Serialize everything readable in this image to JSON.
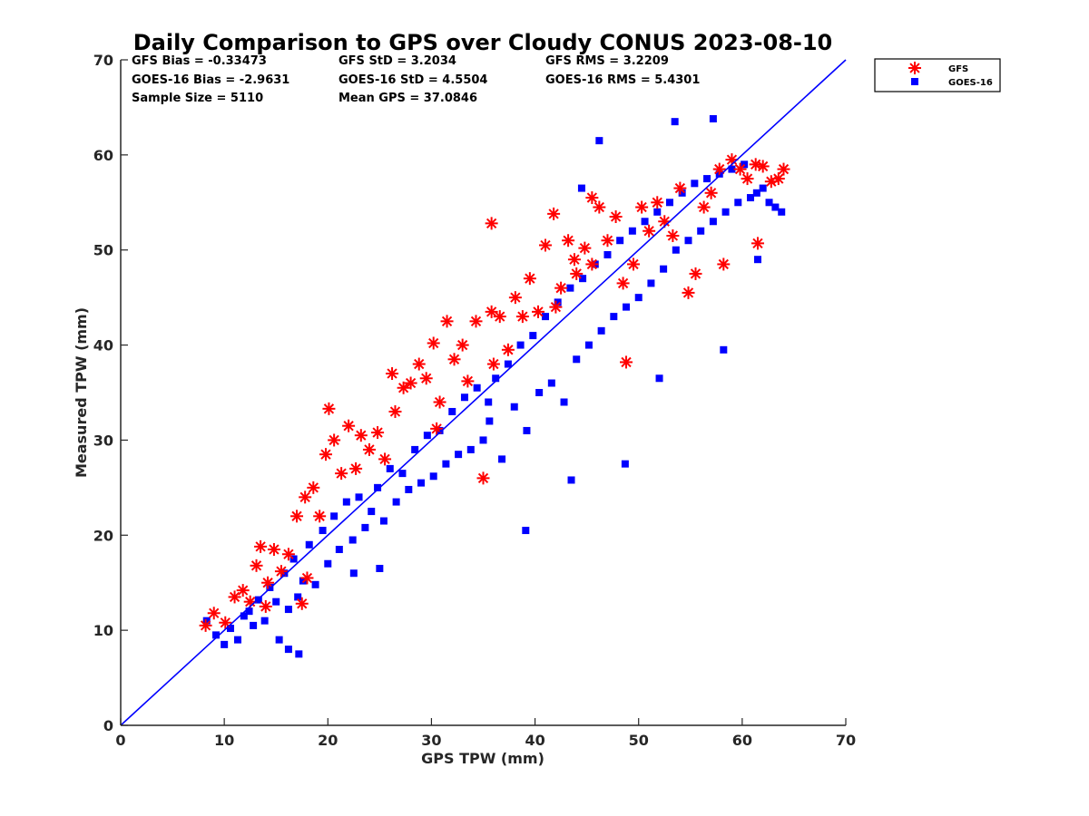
{
  "chart_data": {
    "type": "scatter",
    "title": "Daily Comparison to GPS over Cloudy CONUS 2023-08-10",
    "xlabel": "GPS TPW (mm)",
    "ylabel": "Measured TPW (mm)",
    "xlim": [
      0,
      70
    ],
    "ylim": [
      0,
      70
    ],
    "xticks": [
      "0",
      "10",
      "20",
      "30",
      "40",
      "50",
      "60",
      "70"
    ],
    "yticks": [
      "0",
      "10",
      "20",
      "30",
      "40",
      "50",
      "60",
      "70"
    ],
    "grid": false,
    "legend_position": "outside-top-right",
    "reference_line": {
      "x": [
        0,
        70
      ],
      "y": [
        0,
        70
      ],
      "color": "#0000ff"
    },
    "stats": [
      [
        "GFS Bias = -0.33473",
        "GFS StD = 3.2034",
        "GFS RMS = 3.2209"
      ],
      [
        "GOES-16 Bias = -2.9631",
        "GOES-16 StD = 4.5504",
        "GOES-16 RMS = 5.4301"
      ],
      [
        "Sample Size = 5110",
        "Mean GPS = 37.0846"
      ]
    ],
    "series": [
      {
        "name": "GFS",
        "marker": "asterisk",
        "color": "#ff0000",
        "x": [
          8.2,
          9.0,
          10.1,
          11.0,
          11.8,
          12.5,
          13.1,
          13.5,
          14.2,
          14.8,
          15.5,
          16.2,
          17.0,
          17.8,
          18.0,
          18.6,
          19.2,
          19.8,
          20.1,
          20.6,
          21.3,
          22.0,
          22.7,
          23.2,
          24.0,
          24.8,
          25.5,
          26.2,
          26.5,
          27.3,
          28.0,
          28.8,
          29.5,
          30.2,
          30.8,
          31.5,
          32.2,
          33.0,
          33.5,
          34.3,
          35.0,
          35.8,
          36.0,
          36.6,
          37.4,
          38.1,
          38.8,
          39.5,
          40.3,
          41.0,
          41.8,
          42.5,
          43.2,
          44.0,
          44.8,
          45.5,
          46.2,
          47.0,
          47.8,
          48.5,
          48.8,
          49.5,
          50.3,
          51.0,
          51.8,
          52.5,
          53.3,
          54.0,
          54.8,
          55.5,
          56.3,
          57.0,
          57.8,
          58.2,
          59.0,
          59.8,
          60.5,
          61.3,
          62.0,
          62.8,
          63.5,
          64.0,
          61.5,
          35.8,
          45.5,
          42.0,
          17.5,
          14.0,
          30.5,
          43.8
        ],
        "y": [
          10.5,
          11.8,
          10.8,
          13.5,
          14.2,
          13.0,
          16.8,
          18.8,
          15.0,
          18.5,
          16.2,
          18.0,
          22.0,
          24.0,
          15.5,
          25.0,
          22.0,
          28.5,
          33.3,
          30.0,
          26.5,
          31.5,
          27.0,
          30.5,
          29.0,
          30.8,
          28.0,
          37.0,
          33.0,
          35.5,
          36.0,
          38.0,
          36.5,
          40.2,
          34.0,
          42.5,
          38.5,
          40.0,
          36.2,
          42.5,
          26.0,
          52.8,
          38.0,
          43.0,
          39.5,
          45.0,
          43.0,
          47.0,
          43.5,
          50.5,
          53.8,
          46.0,
          51.0,
          47.5,
          50.2,
          55.5,
          54.5,
          51.0,
          53.5,
          46.5,
          38.2,
          48.5,
          54.5,
          52.0,
          55.0,
          53.0,
          51.5,
          56.5,
          45.5,
          47.5,
          54.5,
          56.0,
          58.5,
          48.5,
          59.5,
          58.5,
          57.5,
          59.0,
          58.8,
          57.2,
          57.5,
          58.5,
          50.7,
          43.5,
          48.5,
          44.0,
          12.8,
          12.5,
          31.2,
          49.0
        ]
      },
      {
        "name": "GOES-16",
        "marker": "square",
        "color": "#0000ff",
        "x": [
          8.3,
          9.2,
          10.0,
          10.6,
          11.3,
          11.9,
          12.4,
          12.8,
          13.3,
          13.9,
          14.4,
          15.0,
          15.3,
          15.8,
          16.2,
          16.7,
          17.1,
          17.6,
          18.2,
          18.8,
          19.5,
          20.0,
          20.6,
          21.1,
          21.8,
          22.4,
          23.0,
          23.6,
          24.2,
          24.8,
          25.4,
          26.0,
          26.6,
          27.2,
          27.8,
          28.4,
          29.0,
          29.6,
          30.2,
          30.8,
          31.4,
          32.0,
          32.6,
          33.2,
          33.8,
          34.4,
          35.0,
          35.6,
          36.2,
          36.8,
          37.4,
          38.0,
          38.6,
          39.2,
          39.8,
          40.4,
          41.0,
          41.6,
          42.2,
          42.8,
          43.4,
          44.0,
          44.6,
          45.2,
          45.8,
          46.4,
          47.0,
          47.6,
          48.2,
          48.8,
          49.4,
          50.0,
          50.6,
          51.2,
          51.8,
          52.4,
          53.0,
          53.6,
          54.2,
          54.8,
          55.4,
          56.0,
          56.6,
          57.2,
          57.8,
          58.4,
          59.0,
          59.6,
          60.2,
          60.8,
          61.4,
          62.0,
          62.6,
          63.2,
          63.8,
          16.2,
          17.2,
          39.1,
          48.7,
          58.2,
          53.5,
          57.2,
          46.2,
          44.5,
          25.0,
          35.5,
          43.5,
          52.0,
          61.5,
          22.5
        ],
        "y": [
          11.0,
          9.5,
          8.5,
          10.2,
          9.0,
          11.5,
          12.0,
          10.5,
          13.2,
          11.0,
          14.5,
          13.0,
          9.0,
          16.0,
          12.2,
          17.5,
          13.5,
          15.2,
          19.0,
          14.8,
          20.5,
          17.0,
          22.0,
          18.5,
          23.5,
          19.5,
          24.0,
          20.8,
          22.5,
          25.0,
          21.5,
          27.0,
          23.5,
          26.5,
          24.8,
          29.0,
          25.5,
          30.5,
          26.2,
          31.0,
          27.5,
          33.0,
          28.5,
          34.5,
          29.0,
          35.5,
          30.0,
          32.0,
          36.5,
          28.0,
          38.0,
          33.5,
          40.0,
          31.0,
          41.0,
          35.0,
          43.0,
          36.0,
          44.5,
          34.0,
          46.0,
          38.5,
          47.0,
          40.0,
          48.5,
          41.5,
          49.5,
          43.0,
          51.0,
          44.0,
          52.0,
          45.0,
          53.0,
          46.5,
          54.0,
          48.0,
          55.0,
          50.0,
          56.0,
          51.0,
          57.0,
          52.0,
          57.5,
          53.0,
          58.0,
          54.0,
          58.5,
          55.0,
          59.0,
          55.5,
          56.0,
          56.5,
          55.0,
          54.5,
          54.0,
          8.0,
          7.5,
          20.5,
          27.5,
          39.5,
          63.5,
          63.8,
          61.5,
          56.5,
          16.5,
          34.0,
          25.8,
          36.5,
          49.0,
          16.0
        ]
      }
    ]
  }
}
